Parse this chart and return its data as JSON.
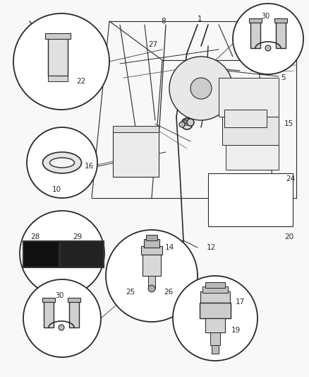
{
  "bg_color": "#f5f5f5",
  "fig_width": 4.38,
  "fig_height": 5.33,
  "dpi": 100,
  "dark": "#333333",
  "med": "#555555",
  "circle_positions": {
    "c22": [
      0.2,
      0.835,
      0.14
    ],
    "c10": [
      0.175,
      0.615,
      0.095
    ],
    "c28": [
      0.2,
      0.415,
      0.115
    ],
    "c14": [
      0.5,
      0.325,
      0.125
    ],
    "c30_br": [
      0.86,
      0.905,
      0.085
    ],
    "c30_bl": [
      0.175,
      0.135,
      0.105
    ],
    "c17": [
      0.6,
      0.125,
      0.115
    ]
  }
}
